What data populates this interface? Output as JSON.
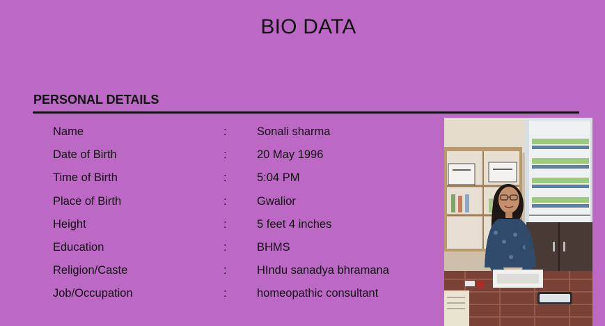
{
  "header": {
    "title": "BIO DATA"
  },
  "section": {
    "heading": "PERSONAL DETAILS"
  },
  "details": [
    {
      "label": "Name",
      "separator": ":",
      "value": "Sonali sharma"
    },
    {
      "label": "Date of Birth",
      "separator": ":",
      "value": "20 May 1996"
    },
    {
      "label": "Time of Birth",
      "separator": ":",
      "value": "5:04 PM"
    },
    {
      "label": "Place of Birth",
      "separator": ":",
      "value": "Gwalior"
    },
    {
      "label": "Height",
      "separator": ":",
      "value": "5 feet 4 inches"
    },
    {
      "label": "Education",
      "separator": ":",
      "value": "BHMS"
    },
    {
      "label": "Religion/Caste",
      "separator": ":",
      "value": "HIndu sanadya bhramana"
    },
    {
      "label": "Job/Occupation",
      "separator": ":",
      "value": "homeopathic consultant"
    }
  ],
  "colors": {
    "background": "#bb69c4",
    "text": "#111111"
  }
}
